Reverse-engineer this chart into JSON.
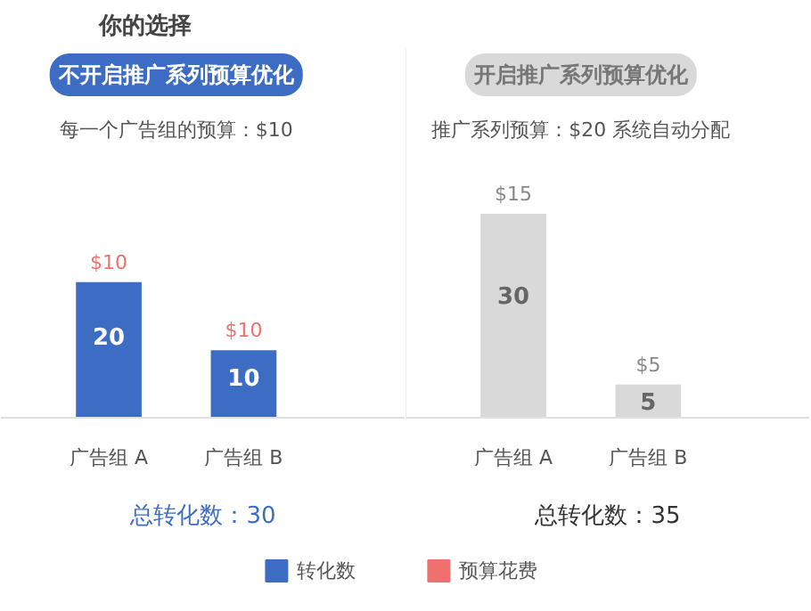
{
  "chart_data": [
    {
      "type": "bar",
      "title": "你的选择",
      "categories": [
        "广告组 A",
        "广告组 B"
      ],
      "xlabel": "总转化数：30",
      "series": [
        {
          "name": "转化数",
          "color": "#3d6cc5",
          "values": [
            20,
            10
          ]
        },
        {
          "name": "预算花费",
          "color": "#f07070",
          "values": [
            null,
            null
          ]
        }
      ],
      "data_labels": true,
      "legend": "bottom",
      "grid": false,
      "annotations": [
        "不开启推广系列预算优化",
        "每一个广告组的预算：$10",
        {
          "text": "$10",
          "x": "广告组 A",
          "y": 20
        },
        {
          "text": "$10",
          "x": "广告组 B",
          "y": 10
        }
      ]
    },
    {
      "type": "bar",
      "categories": [
        "广告组 A",
        "广告组 B"
      ],
      "xlabel": "总转化数：35",
      "series": [
        {
          "color": "#d9d9d9",
          "values": [
            30,
            5
          ]
        }
      ],
      "data_labels": true,
      "grid": false,
      "annotations": [
        "开启推广系列预算优化",
        "推广系列预算：$20 系统自动分配",
        {
          "text": "$15",
          "x": "广告组 A",
          "y": 30
        },
        {
          "text": "$5",
          "x": "广告组 B",
          "y": 5
        }
      ]
    }
  ]
}
